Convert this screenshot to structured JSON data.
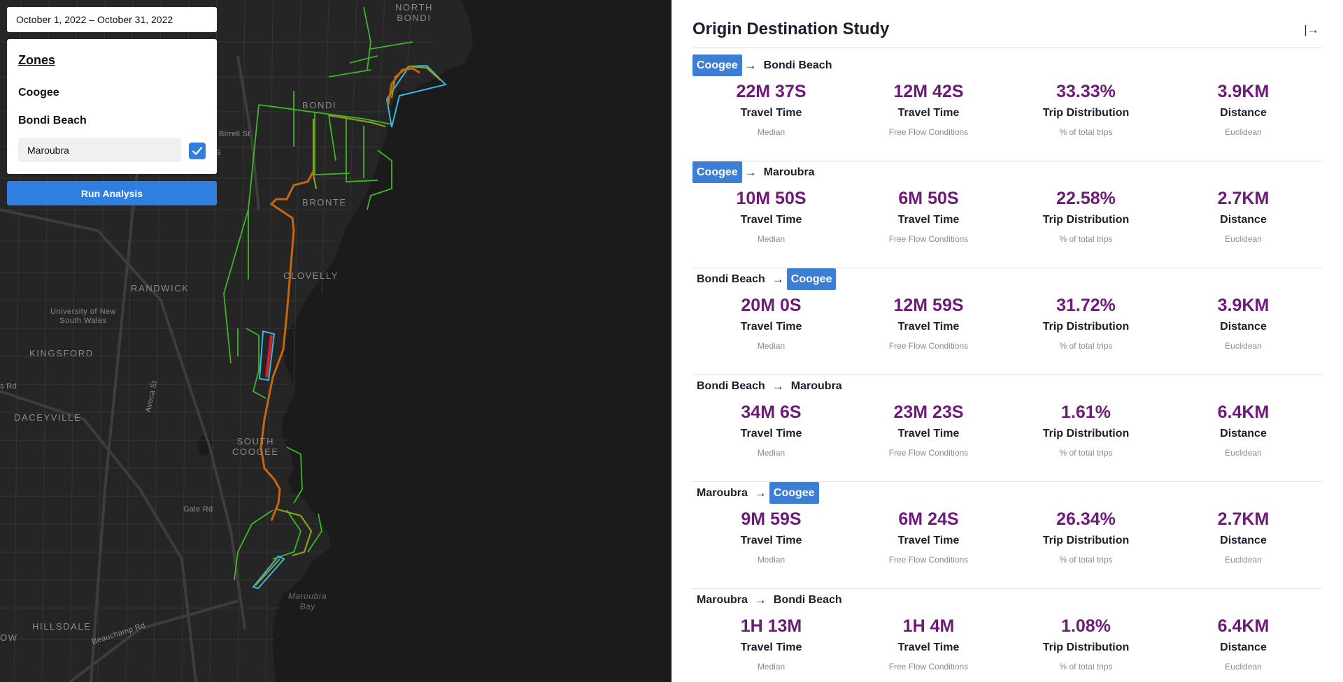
{
  "filters": {
    "date_range": "October 1, 2022 – October 31, 2022"
  },
  "zones": {
    "title": "Zones",
    "items": [
      "Coogee",
      "Bondi Beach"
    ],
    "input_value": "Maroubra",
    "checked": true
  },
  "run_button": "Run Analysis",
  "map": {
    "labels": {
      "north_bondi": "NORTH\nBONDI",
      "bondi": "BONDI",
      "bronte": "BRONTE",
      "clovelly": "CLOVELLY",
      "randwick": "RANDWICK",
      "unsw": "University of New\nSouth Wales",
      "kingsford": "KINGSFORD",
      "daceyville": "DACEYVILLE",
      "south_coogee": "SOUTH\nCOOGEE",
      "hillsdale": "HILLSDALE",
      "maroubra_bay": "Maroubra\nBay",
      "birrell_st": "Birrell St",
      "avoca_st": "Avoca St",
      "gale_rd": "Gale Rd",
      "beauchamp_rd": "Beauchamp Rd",
      "s_rd": "s Rd",
      "ow": "OW",
      "s": "S"
    },
    "colors": {
      "land": "#252525",
      "water": "#1b1b1b",
      "zone_outline": "#37b8e8",
      "flow_low": "#3fb52a",
      "flow_mid": "#8aa214",
      "flow_high": "#c8660a",
      "flow_severe": "#e02020"
    }
  },
  "panel": {
    "title": "Origin Destination Study",
    "collapse_icon": "collapse-right-icon",
    "accent_color": "#3b7ed4",
    "value_color": "#6d1a78",
    "routes": [
      {
        "origin": "Coogee",
        "destination": "Bondi Beach",
        "highlight": "origin",
        "metrics": [
          {
            "value": "22M 37S",
            "label": "Travel Time",
            "sub": "Median"
          },
          {
            "value": "12M 42S",
            "label": "Travel Time",
            "sub": "Free Flow Conditions"
          },
          {
            "value": "33.33%",
            "label": "Trip Distribution",
            "sub": "% of total trips"
          },
          {
            "value": "3.9KM",
            "label": "Distance",
            "sub": "Euclidean"
          }
        ]
      },
      {
        "origin": "Coogee",
        "destination": "Maroubra",
        "highlight": "origin",
        "metrics": [
          {
            "value": "10M 50S",
            "label": "Travel Time",
            "sub": "Median"
          },
          {
            "value": "6M 50S",
            "label": "Travel Time",
            "sub": "Free Flow Conditions"
          },
          {
            "value": "22.58%",
            "label": "Trip Distribution",
            "sub": "% of total trips"
          },
          {
            "value": "2.7KM",
            "label": "Distance",
            "sub": "Euclidean"
          }
        ]
      },
      {
        "origin": "Bondi Beach",
        "destination": "Coogee",
        "highlight": "destination",
        "metrics": [
          {
            "value": "20M 0S",
            "label": "Travel Time",
            "sub": "Median"
          },
          {
            "value": "12M 59S",
            "label": "Travel Time",
            "sub": "Free Flow Conditions"
          },
          {
            "value": "31.72%",
            "label": "Trip Distribution",
            "sub": "% of total trips"
          },
          {
            "value": "3.9KM",
            "label": "Distance",
            "sub": "Euclidean"
          }
        ]
      },
      {
        "origin": "Bondi Beach",
        "destination": "Maroubra",
        "highlight": "none",
        "metrics": [
          {
            "value": "34M 6S",
            "label": "Travel Time",
            "sub": "Median"
          },
          {
            "value": "23M 23S",
            "label": "Travel Time",
            "sub": "Free Flow Conditions"
          },
          {
            "value": "1.61%",
            "label": "Trip Distribution",
            "sub": "% of total trips"
          },
          {
            "value": "6.4KM",
            "label": "Distance",
            "sub": "Euclidean"
          }
        ]
      },
      {
        "origin": "Maroubra",
        "destination": "Coogee",
        "highlight": "destination",
        "metrics": [
          {
            "value": "9M 59S",
            "label": "Travel Time",
            "sub": "Median"
          },
          {
            "value": "6M 24S",
            "label": "Travel Time",
            "sub": "Free Flow Conditions"
          },
          {
            "value": "26.34%",
            "label": "Trip Distribution",
            "sub": "% of total trips"
          },
          {
            "value": "2.7KM",
            "label": "Distance",
            "sub": "Euclidean"
          }
        ]
      },
      {
        "origin": "Maroubra",
        "destination": "Bondi Beach",
        "highlight": "none",
        "metrics": [
          {
            "value": "1H 13M",
            "label": "Travel Time",
            "sub": "Median"
          },
          {
            "value": "1H 4M",
            "label": "Travel Time",
            "sub": "Free Flow Conditions"
          },
          {
            "value": "1.08%",
            "label": "Trip Distribution",
            "sub": "% of total trips"
          },
          {
            "value": "6.4KM",
            "label": "Distance",
            "sub": "Euclidean"
          }
        ]
      }
    ]
  }
}
